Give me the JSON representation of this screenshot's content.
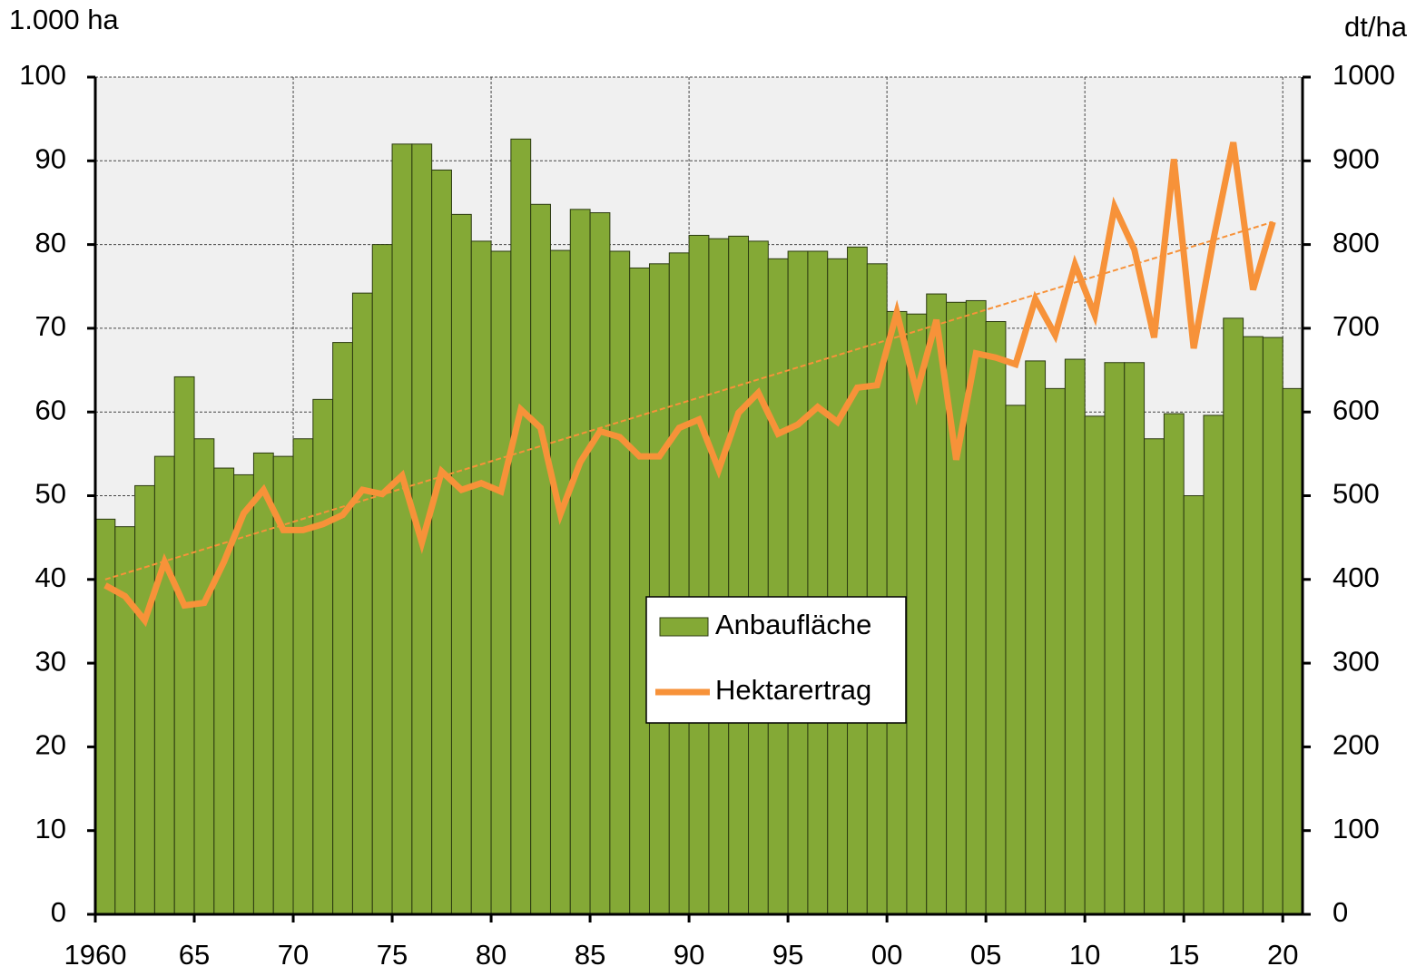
{
  "chart_data": {
    "type": "bar-line",
    "y_axis_label": "1.000 ha",
    "y2_axis_label": "dt/ha",
    "categories": [
      "1960",
      null,
      null,
      null,
      null,
      "65",
      null,
      null,
      null,
      null,
      "70",
      null,
      null,
      null,
      null,
      "75",
      null,
      null,
      null,
      null,
      "80",
      null,
      null,
      null,
      null,
      "85",
      null,
      null,
      null,
      null,
      "90",
      null,
      null,
      null,
      null,
      "95",
      null,
      null,
      null,
      null,
      "00",
      null,
      null,
      null,
      null,
      "05",
      null,
      null,
      null,
      null,
      "10",
      null,
      null,
      null,
      null,
      "15",
      null,
      null,
      null,
      null,
      "20"
    ],
    "series": [
      {
        "name": "Anbaufläche",
        "type": "bar",
        "color": "#84a936",
        "values": [
          47.2,
          46.3,
          51.2,
          54.7,
          64.2,
          56.8,
          53.3,
          52.5,
          55.1,
          54.7,
          56.8,
          61.5,
          68.3,
          74.2,
          80.0,
          92.0,
          92.0,
          88.9,
          83.6,
          80.4,
          79.2,
          92.6,
          84.8,
          79.3,
          84.2,
          83.8,
          79.2,
          77.2,
          77.7,
          79.0,
          81.1,
          80.7,
          81.0,
          80.4,
          78.3,
          79.2,
          79.2,
          78.3,
          79.7,
          77.7,
          72.0,
          71.7,
          74.1,
          73.1,
          73.3,
          70.8,
          60.8,
          66.1,
          62.8,
          66.3,
          59.5,
          65.9,
          65.9,
          56.8,
          59.8,
          50.0,
          59.6,
          71.2,
          69.0,
          68.9,
          62.8
        ]
      },
      {
        "name": "Hektarertrag",
        "type": "line",
        "axis": "y2",
        "color": "#f79239",
        "values": [
          393,
          380,
          351,
          421,
          369,
          372,
          421,
          479,
          507,
          459,
          459,
          466,
          477,
          507,
          502,
          524,
          444,
          529,
          507,
          515,
          505,
          603,
          581,
          478,
          540,
          577,
          570,
          547,
          547,
          581,
          591,
          531,
          599,
          623,
          574,
          585,
          606,
          588,
          629,
          632,
          719,
          623,
          710,
          543,
          670,
          665,
          657,
          735,
          692,
          776,
          716,
          845,
          794,
          689,
          902,
          676,
          806,
          922,
          746,
          827,
          null
        ]
      }
    ],
    "trendline": {
      "color": "#f79239",
      "values": [
        400,
        827
      ]
    },
    "ylim": [
      0,
      100
    ],
    "yticks": [
      0,
      10,
      20,
      30,
      40,
      50,
      60,
      70,
      80,
      90,
      100
    ],
    "y2lim": [
      0,
      1000
    ],
    "y2ticks": [
      0,
      100,
      200,
      300,
      400,
      500,
      600,
      700,
      800,
      900,
      1000
    ],
    "grid": true
  }
}
